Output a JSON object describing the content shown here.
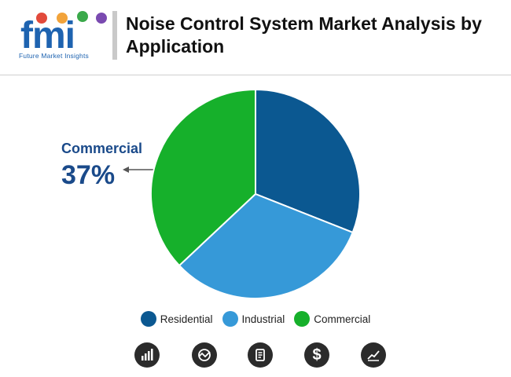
{
  "brand": {
    "letters": "fmi",
    "tagline": "Future Market Insights",
    "dot_colors": [
      "#e24a3b",
      "#f2a33a",
      "#3aa94a",
      "#7a4ab0"
    ]
  },
  "title": "Noise Control System Market Analysis by Application",
  "callout": {
    "name": "Commercial",
    "value": "37%"
  },
  "chart_data": {
    "type": "pie",
    "title": "Noise Control System Market Analysis by Application",
    "series": [
      {
        "name": "Residential",
        "value": 31,
        "color": "#0b5891"
      },
      {
        "name": "Industrial",
        "value": 32,
        "color": "#3699d8"
      },
      {
        "name": "Commercial",
        "value": 37,
        "color": "#16b02b"
      }
    ],
    "labeled_values": {
      "Commercial": "37%"
    },
    "legend_position": "bottom"
  },
  "footer_icons": [
    "bar-chart-icon",
    "trend-analysis-icon",
    "report-icon",
    "dollar-icon",
    "growth-chart-icon"
  ]
}
